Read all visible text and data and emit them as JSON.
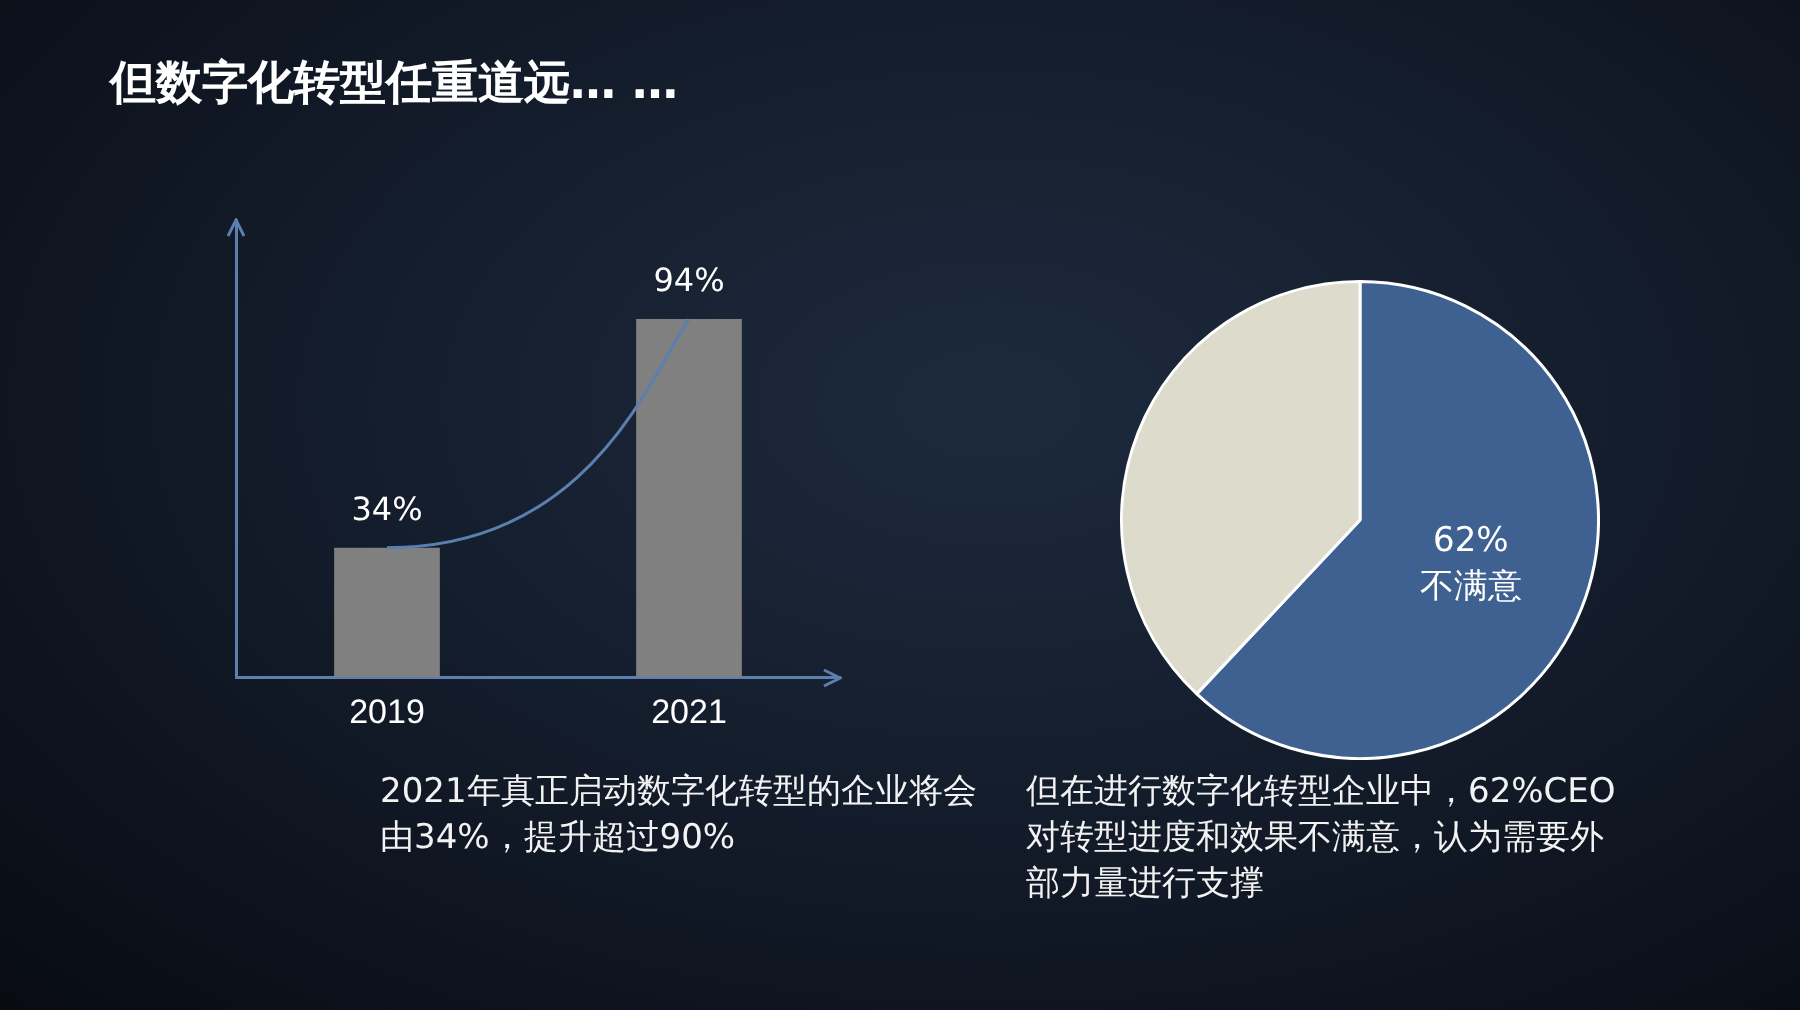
{
  "chart_data": [
    {
      "type": "bar",
      "title": "但数字化转型任重道远… …",
      "categories": [
        "2019",
        "2021"
      ],
      "values": [
        34,
        94
      ],
      "value_labels": [
        "34%",
        "94%"
      ],
      "color": "#808080",
      "ylim": [
        0,
        120
      ],
      "tick_labels": "x",
      "grid": false,
      "legend": false,
      "annotations": [
        "2021年真正启动数字化转型的企业将会由34%，提升超过90%"
      ]
    },
    {
      "type": "pie",
      "categories": [
        "不满意",
        null
      ],
      "values": [
        62,
        38
      ],
      "colors": [
        "#3e6192",
        "#dcdbcc"
      ],
      "value_labels": [
        "62%",
        null
      ],
      "legend": false,
      "annotations": [
        "但在进行数字化转型企业中，62%CEO对转型进度和效果不满意，认为需要外部力量进行支撑"
      ]
    }
  ]
}
